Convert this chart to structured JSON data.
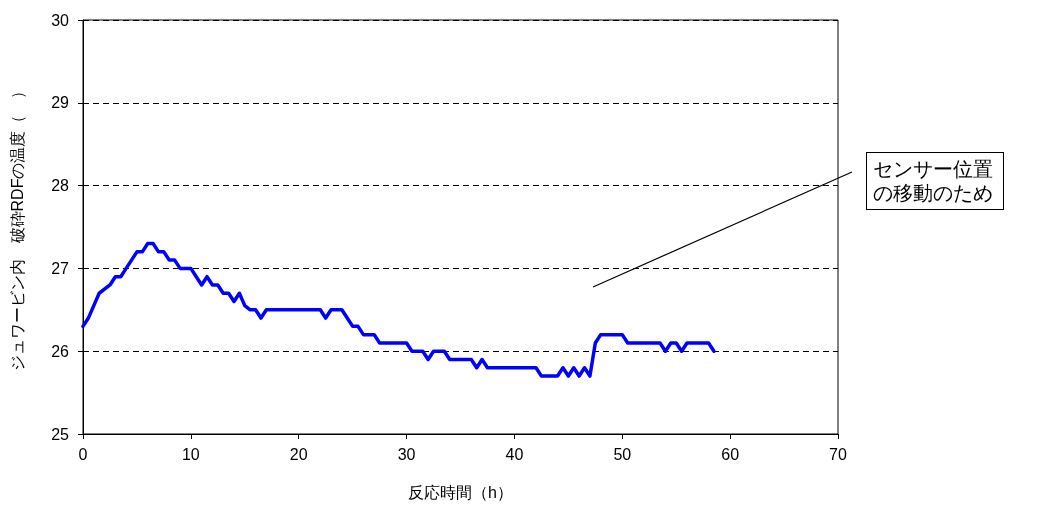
{
  "chart_data": {
    "type": "line",
    "xlabel": "反応時間（h）",
    "ylabel": "ジュワービン内　破砕RDFの温度（　）",
    "xlim": [
      0,
      70
    ],
    "xticks": [
      0,
      10,
      20,
      30,
      40,
      50,
      60,
      70
    ],
    "ylim": [
      25,
      30
    ],
    "yticks": [
      25,
      26,
      27,
      28,
      29,
      30
    ],
    "grid": "y",
    "marker": "none",
    "line_style": "solid",
    "annotations": [
      "センサー位置の移動のため"
    ],
    "series": [
      {
        "color": "#0000ff",
        "x": [
          0,
          0.5,
          1,
          1.5,
          2.5,
          3,
          3.5,
          4,
          4.5,
          5,
          5.5,
          6,
          6.5,
          7,
          7.5,
          8,
          8.5,
          9,
          10,
          10.5,
          11,
          11.5,
          12,
          12.5,
          13,
          13.5,
          14,
          14.5,
          15,
          15.5,
          16,
          16.5,
          17,
          22,
          22.5,
          23,
          24,
          24.5,
          25,
          25.5,
          26,
          27,
          27.5,
          30,
          30.5,
          31.5,
          32,
          32.5,
          33.5,
          34,
          36,
          36.5,
          37,
          37.5,
          42,
          42.5,
          44,
          44.5,
          45,
          45.5,
          46,
          46.5,
          47,
          47.5,
          48,
          50,
          50.5,
          53.5,
          54,
          54.5,
          55,
          55.5,
          56,
          58,
          58.5
        ],
        "values": [
          26.3,
          26.4,
          26.55,
          26.7,
          26.8,
          26.9,
          26.9,
          27.0,
          27.1,
          27.2,
          27.2,
          27.3,
          27.3,
          27.2,
          27.2,
          27.1,
          27.1,
          27.0,
          27.0,
          26.9,
          26.8,
          26.9,
          26.8,
          26.8,
          26.7,
          26.7,
          26.6,
          26.7,
          26.55,
          26.5,
          26.5,
          26.4,
          26.5,
          26.5,
          26.4,
          26.5,
          26.5,
          26.4,
          26.3,
          26.3,
          26.2,
          26.2,
          26.1,
          26.1,
          26.0,
          26.0,
          25.9,
          26.0,
          26.0,
          25.9,
          25.9,
          25.8,
          25.9,
          25.8,
          25.8,
          25.7,
          25.7,
          25.8,
          25.7,
          25.8,
          25.7,
          25.8,
          25.7,
          26.1,
          26.2,
          26.2,
          26.1,
          26.1,
          26.0,
          26.1,
          26.1,
          26.0,
          26.1,
          26.1,
          26.0
        ]
      }
    ]
  }
}
